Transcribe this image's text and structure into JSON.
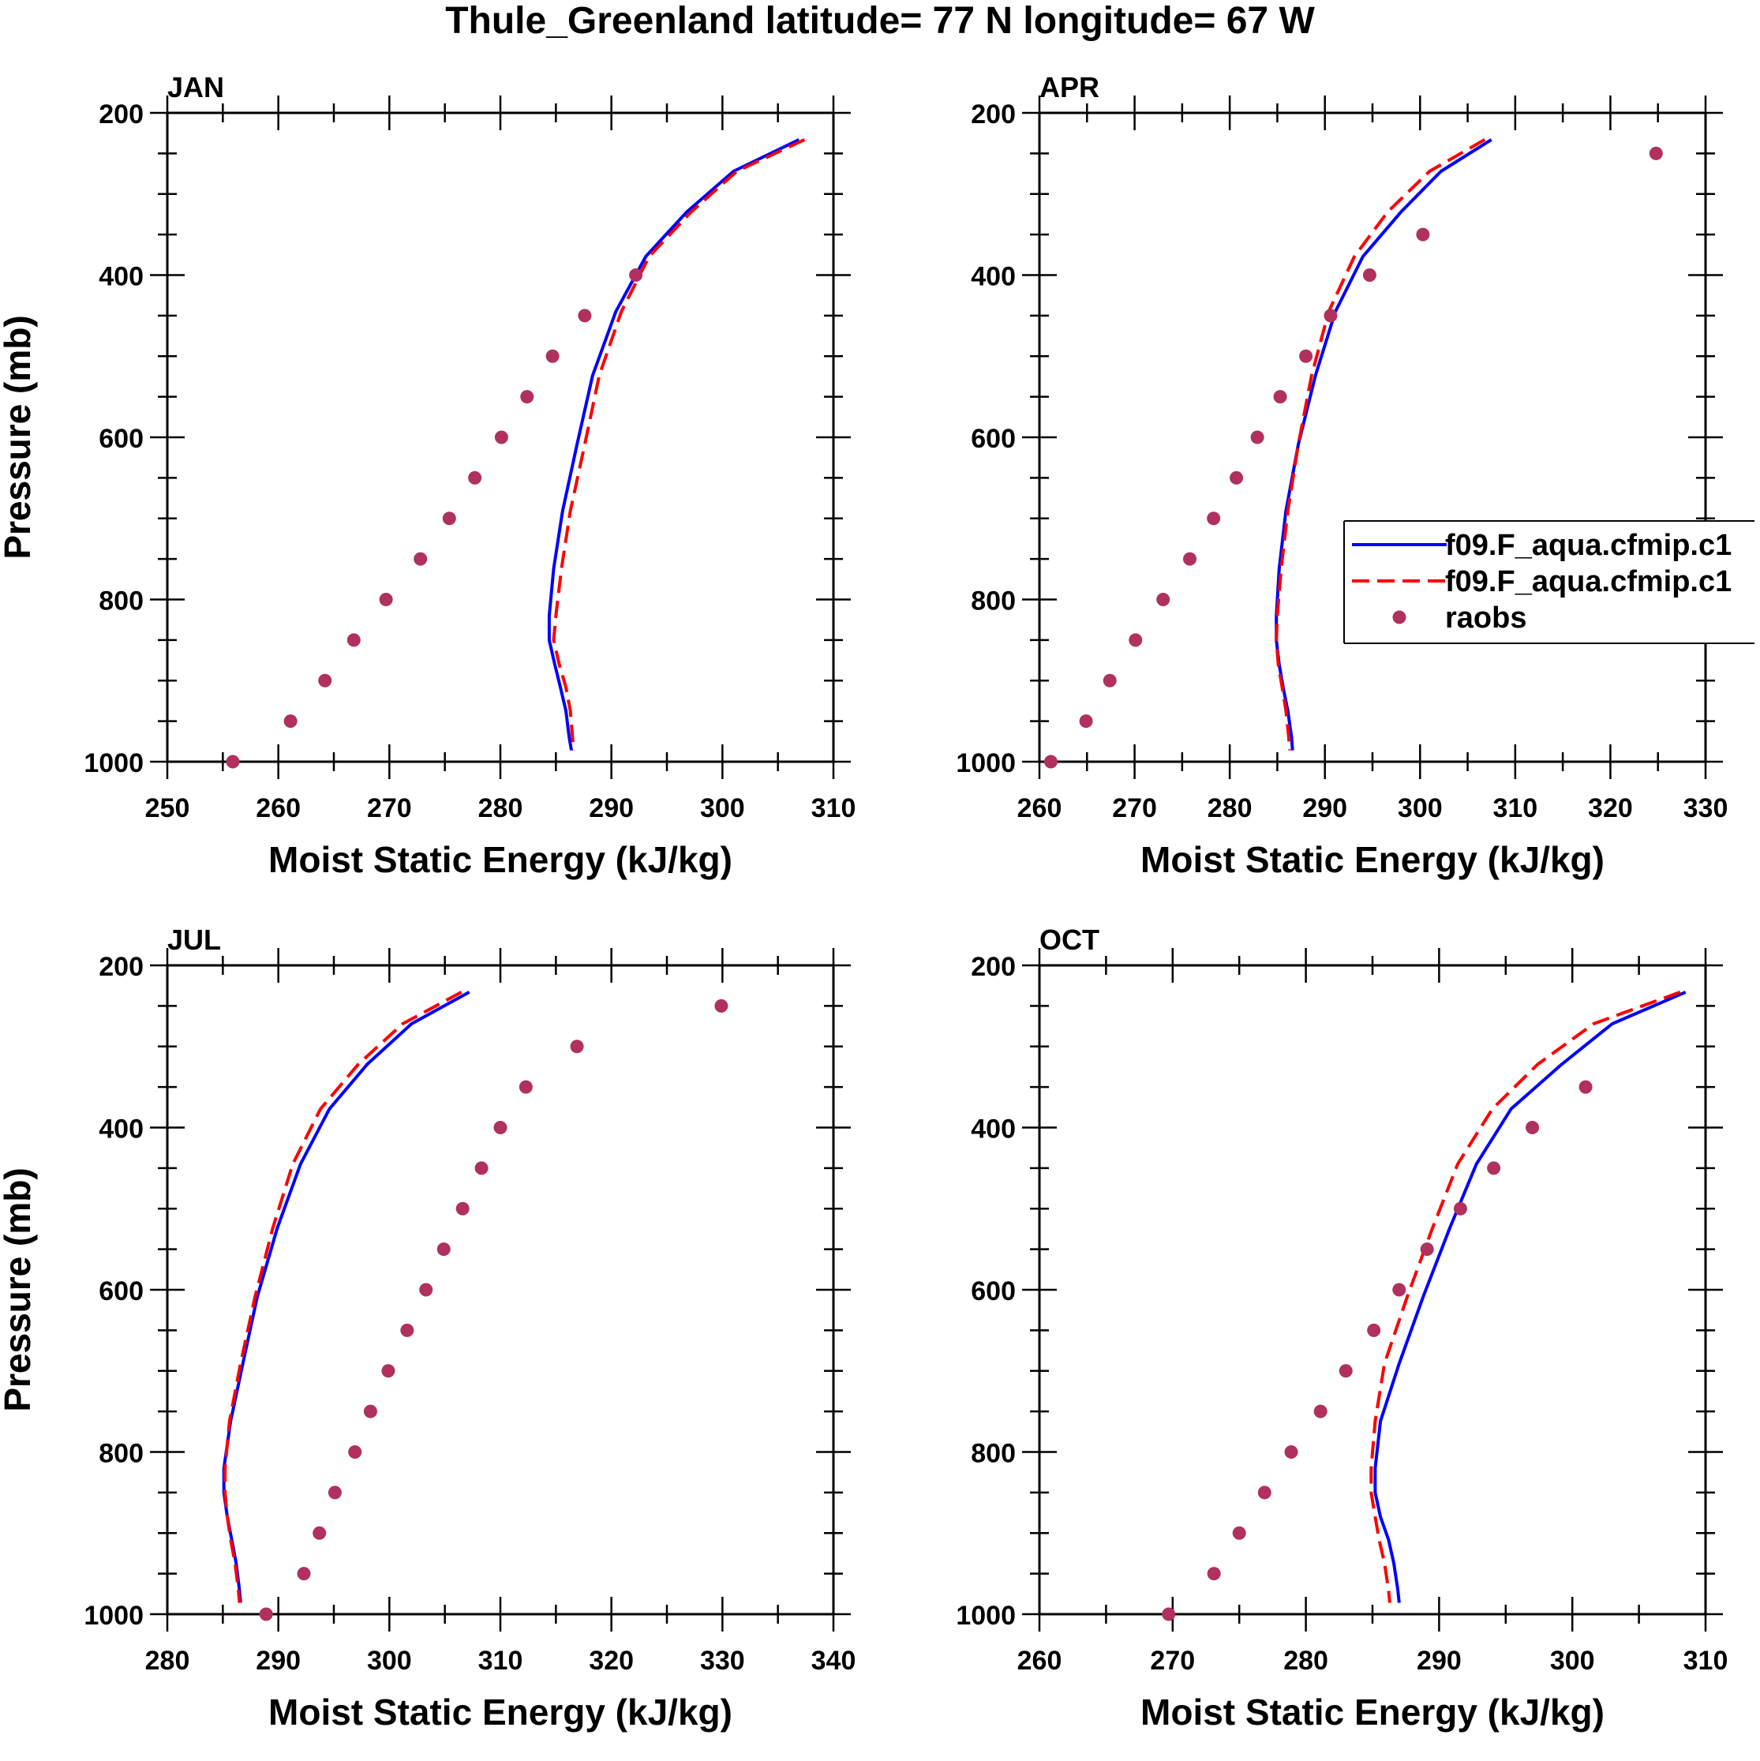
{
  "figure": {
    "title": "Thule_Greenland  latitude= 77 N longitude= 67 W",
    "legend": {
      "entries": [
        {
          "label": "f09.F_aqua.cfmip.c1",
          "style": "solid",
          "color": "#0000ff"
        },
        {
          "label": "f09.F_aqua.cfmip.c1",
          "style": "dashed",
          "color": "#ff0000"
        },
        {
          "label": "raobs",
          "style": "marker",
          "color": "#b03060"
        }
      ]
    }
  },
  "colors": {
    "model_a": "#0000ff",
    "model_b": "#ff0000",
    "raobs": "#b03060"
  },
  "chart_data": [
    {
      "type": "line",
      "panel": "JAN",
      "title": "JAN",
      "xlabel": "Moist Static Energy (kJ/kg)",
      "ylabel": "Pressure (mb)",
      "xlim": [
        250,
        310
      ],
      "ylim": [
        1000,
        200
      ],
      "xticks": [
        250,
        260,
        270,
        280,
        290,
        300,
        310
      ],
      "yticks": [
        200,
        400,
        600,
        800,
        1000
      ],
      "pressure": [
        233,
        272,
        322,
        377,
        445,
        524,
        609,
        691,
        762,
        820,
        850,
        880,
        908,
        937,
        970,
        986
      ],
      "series": [
        {
          "name": "f09.F_aqua.cfmip.c1",
          "style": "solid",
          "values": [
            306.9,
            301.0,
            296.8,
            293.1,
            290.4,
            288.3,
            286.9,
            285.6,
            284.8,
            284.4,
            284.4,
            284.9,
            285.4,
            285.9,
            286.2,
            286.4
          ]
        },
        {
          "name": "f09.F_aqua.cfmip.c1",
          "style": "dashed",
          "values": [
            307.4,
            301.3,
            297.2,
            293.4,
            290.9,
            288.9,
            287.6,
            286.3,
            285.5,
            285.0,
            284.8,
            285.3,
            285.9,
            286.3,
            286.5,
            286.6
          ]
        }
      ],
      "raobs": {
        "pressure": [
          400,
          450,
          500,
          550,
          600,
          650,
          700,
          750,
          800,
          850,
          900,
          950,
          1000
        ],
        "values": [
          292.2,
          287.6,
          284.7,
          282.4,
          280.1,
          277.7,
          275.4,
          272.8,
          269.7,
          266.8,
          264.2,
          261.1,
          255.9
        ]
      }
    },
    {
      "type": "line",
      "panel": "APR",
      "title": "APR",
      "xlabel": "Moist Static Energy (kJ/kg)",
      "ylabel": "Pressure (mb)",
      "xlim": [
        260,
        330
      ],
      "ylim": [
        1000,
        200
      ],
      "xticks": [
        260,
        270,
        280,
        290,
        300,
        310,
        320,
        330
      ],
      "yticks": [
        200,
        400,
        600,
        800,
        1000
      ],
      "pressure": [
        233,
        272,
        322,
        377,
        445,
        524,
        609,
        691,
        762,
        820,
        850,
        880,
        908,
        937,
        970,
        986
      ],
      "series": [
        {
          "name": "f09.F_aqua.cfmip.c1",
          "style": "solid",
          "values": [
            307.5,
            302.2,
            298.0,
            294.0,
            291.1,
            289.0,
            287.2,
            285.9,
            285.2,
            284.9,
            284.9,
            285.2,
            285.6,
            286.1,
            286.5,
            286.6
          ]
        },
        {
          "name": "f09.F_aqua.cfmip.c1",
          "style": "dashed",
          "values": [
            306.8,
            301.0,
            296.6,
            293.1,
            290.4,
            288.6,
            287.2,
            286.1,
            285.4,
            285.0,
            284.9,
            285.1,
            285.5,
            285.9,
            286.2,
            286.3
          ]
        }
      ],
      "raobs": {
        "pressure": [
          250,
          350,
          400,
          450,
          500,
          550,
          600,
          650,
          700,
          750,
          800,
          850,
          900,
          950,
          1000
        ],
        "values": [
          324.8,
          300.3,
          294.7,
          290.6,
          288.0,
          285.3,
          282.9,
          280.7,
          278.3,
          275.8,
          273.0,
          270.1,
          267.4,
          264.9,
          261.2
        ]
      }
    },
    {
      "type": "line",
      "panel": "JUL",
      "title": "JUL",
      "xlabel": "Moist Static Energy (kJ/kg)",
      "ylabel": "Pressure (mb)",
      "xlim": [
        280,
        340
      ],
      "ylim": [
        1000,
        200
      ],
      "xticks": [
        280,
        290,
        300,
        310,
        320,
        330,
        340
      ],
      "yticks": [
        200,
        400,
        600,
        800,
        1000
      ],
      "pressure": [
        233,
        272,
        322,
        377,
        445,
        524,
        609,
        691,
        762,
        820,
        850,
        880,
        908,
        937,
        970,
        986
      ],
      "series": [
        {
          "name": "f09.F_aqua.cfmip.c1",
          "style": "solid",
          "values": [
            307.2,
            302.0,
            298.0,
            294.6,
            292.0,
            289.9,
            288.1,
            286.8,
            285.7,
            285.1,
            285.1,
            285.4,
            285.8,
            286.2,
            286.5,
            286.6
          ]
        },
        {
          "name": "f09.F_aqua.cfmip.c1",
          "style": "dashed",
          "values": [
            306.5,
            301.2,
            297.2,
            293.8,
            291.3,
            289.5,
            287.9,
            286.6,
            285.6,
            285.2,
            285.2,
            285.4,
            285.7,
            286.1,
            286.4,
            286.5
          ]
        }
      ],
      "raobs": {
        "pressure": [
          250,
          300,
          350,
          400,
          450,
          500,
          550,
          600,
          650,
          700,
          750,
          800,
          850,
          900,
          950,
          1000
        ],
        "values": [
          329.9,
          316.9,
          312.3,
          310.0,
          308.3,
          306.6,
          304.9,
          303.3,
          301.6,
          299.9,
          298.3,
          296.9,
          295.1,
          293.7,
          292.3,
          288.9
        ]
      }
    },
    {
      "type": "line",
      "panel": "OCT",
      "title": "OCT",
      "xlabel": "Moist Static Energy (kJ/kg)",
      "ylabel": "Pressure (mb)",
      "xlim": [
        260,
        310
      ],
      "ylim": [
        1000,
        200
      ],
      "xticks": [
        260,
        270,
        280,
        290,
        300,
        310
      ],
      "yticks": [
        200,
        400,
        600,
        800,
        1000
      ],
      "pressure": [
        233,
        272,
        322,
        377,
        445,
        524,
        609,
        691,
        762,
        820,
        850,
        880,
        908,
        937,
        970,
        986
      ],
      "series": [
        {
          "name": "f09.F_aqua.cfmip.c1",
          "style": "solid",
          "values": [
            308.5,
            303.0,
            299.2,
            295.4,
            292.8,
            290.8,
            288.8,
            287.0,
            285.6,
            285.2,
            285.2,
            285.6,
            286.2,
            286.6,
            286.9,
            287.0
          ]
        },
        {
          "name": "f09.F_aqua.cfmip.c1",
          "style": "dashed",
          "values": [
            308.1,
            301.6,
            297.4,
            294.0,
            291.4,
            289.5,
            287.6,
            285.9,
            285.2,
            284.9,
            284.9,
            285.2,
            285.5,
            285.9,
            286.2,
            286.3
          ]
        }
      ],
      "raobs": {
        "pressure": [
          350,
          400,
          450,
          500,
          550,
          600,
          650,
          700,
          750,
          800,
          850,
          900,
          950,
          1000
        ],
        "values": [
          301.0,
          297.0,
          294.1,
          291.6,
          289.1,
          287.0,
          285.1,
          283.0,
          281.1,
          278.9,
          276.9,
          275.0,
          273.1,
          269.7
        ]
      }
    }
  ]
}
